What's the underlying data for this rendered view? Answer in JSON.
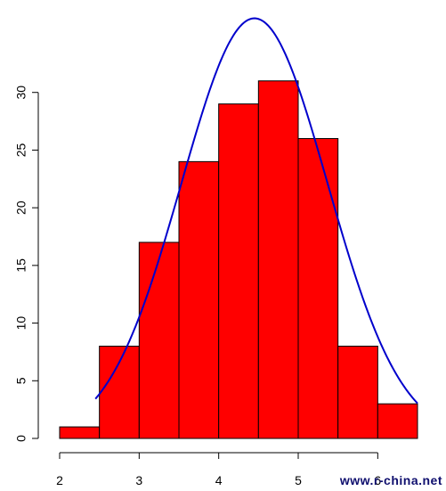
{
  "chart_data": {
    "type": "bar",
    "title": "",
    "xlabel": "",
    "ylabel": "",
    "bin_edges": [
      2,
      2.5,
      3,
      3.5,
      4,
      4.5,
      5,
      5.5,
      6,
      6.5
    ],
    "values": [
      1,
      8,
      17,
      24,
      29,
      31,
      26,
      8,
      3
    ],
    "xlim": [
      2,
      6.5
    ],
    "ylim": [
      0,
      35
    ],
    "xticks": [
      2,
      3,
      4,
      5,
      6
    ],
    "yticks": [
      0,
      5,
      10,
      15,
      20,
      25,
      30
    ],
    "bar_color": "#ff0000",
    "bar_border_color": "#000000",
    "curve": {
      "color": "#0000cc",
      "type": "normal density (scaled)",
      "x_range": [
        2.45,
        6.5
      ],
      "mean": 4.45,
      "sd": 0.92,
      "scale": 84
    },
    "grid": false,
    "legend": "none"
  },
  "watermark": "www.r-china.net"
}
